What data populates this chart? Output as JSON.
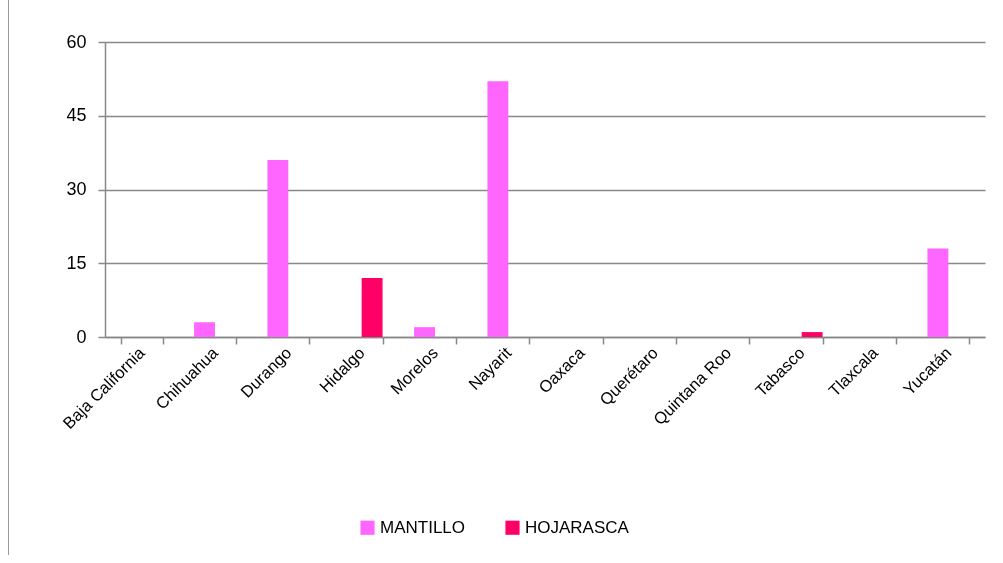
{
  "chart_data": {
    "type": "bar",
    "categories": [
      "Baja California",
      "Chihuahua",
      "Durango",
      "Hidalgo",
      "Morelos",
      "Nayarit",
      "Oaxaca",
      "Querétaro",
      "Quintana Roo",
      "Tabasco",
      "Tlaxcala",
      "Yucatán"
    ],
    "series": [
      {
        "name": "MANTILLO",
        "color": "#ff66ff",
        "values": [
          0,
          3,
          36,
          0,
          2,
          52,
          0,
          0,
          0,
          0,
          0,
          18
        ]
      },
      {
        "name": "HOJARASCA",
        "color": "#ff0066",
        "values": [
          0,
          0,
          0,
          12,
          0,
          0,
          0,
          0,
          0,
          1,
          0,
          0
        ]
      }
    ],
    "ylim": [
      0,
      60
    ],
    "yticks": [
      0,
      15,
      30,
      45,
      60
    ],
    "grid": "y",
    "legend": "bottom"
  }
}
